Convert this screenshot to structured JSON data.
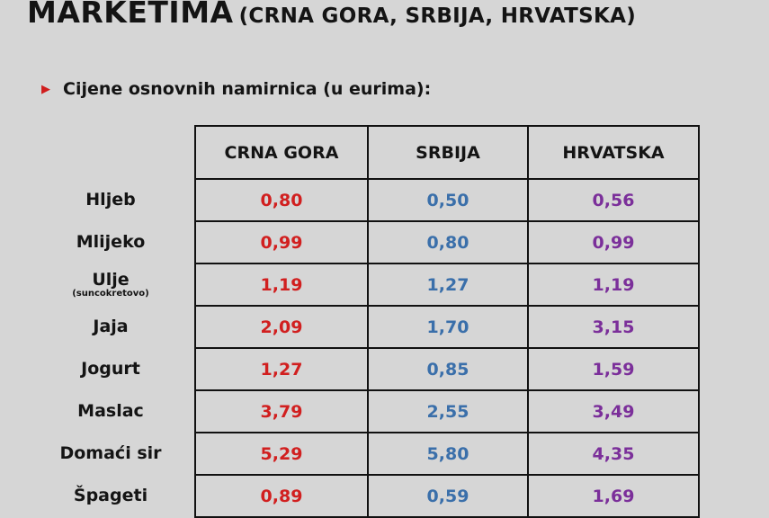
{
  "slide": {
    "title_main": "MARKETIMA",
    "title_sub": "(CRNA GORA, SRBIJA, HRVATSKA)",
    "bullet_marker": "▶",
    "bullet": "Cijene osnovnih namirnica (u eurima):"
  },
  "colors": {
    "crna_gora": "#d11f1f",
    "srbija": "#3a6faa",
    "hrvatska": "#7b2f9a"
  },
  "table": {
    "headers": [
      "CRNA GORA",
      "SRBIJA",
      "HRVATSKA"
    ],
    "rows": [
      {
        "label": "Hljeb",
        "sub": "",
        "values": [
          "0,80",
          "0,50",
          "0,56"
        ]
      },
      {
        "label": "Mlijeko",
        "sub": "",
        "values": [
          "0,99",
          "0,80",
          "0,99"
        ]
      },
      {
        "label": "Ulje",
        "sub": "(suncokretovo)",
        "values": [
          "1,19",
          "1,27",
          "1,19"
        ]
      },
      {
        "label": "Jaja",
        "sub": "",
        "values": [
          "2,09",
          "1,70",
          "3,15"
        ]
      },
      {
        "label": "Jogurt",
        "sub": "",
        "values": [
          "1,27",
          "0,85",
          "1,59"
        ]
      },
      {
        "label": "Maslac",
        "sub": "",
        "values": [
          "3,79",
          "2,55",
          "3,49"
        ]
      },
      {
        "label": "Domaći sir",
        "sub": "",
        "values": [
          "5,29",
          "5,80",
          "4,35"
        ]
      },
      {
        "label": "Špageti",
        "sub": "",
        "values": [
          "0,89",
          "0,59",
          "1,69"
        ]
      }
    ]
  }
}
